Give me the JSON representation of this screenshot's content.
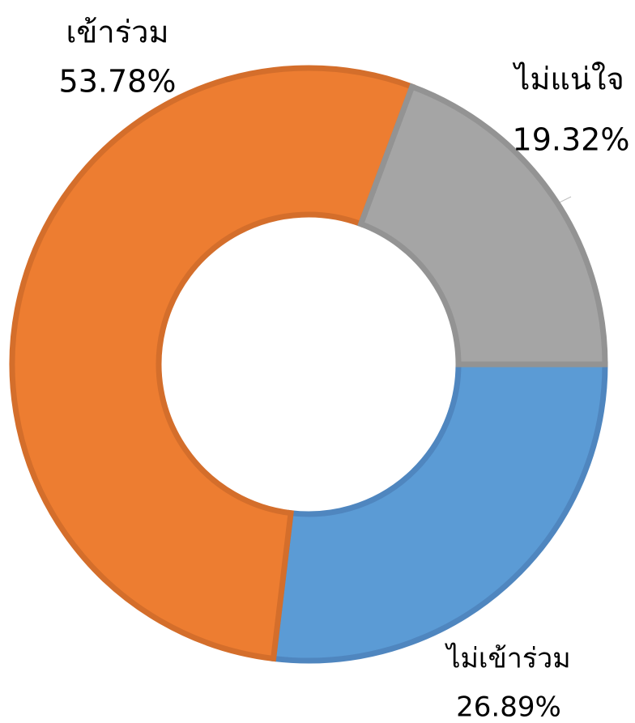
{
  "chart_data": {
    "type": "donut",
    "categories": [
      "ไม่เข้าร่วม",
      "เข้าร่วม",
      "ไม่แน่ใจ"
    ],
    "values": [
      26.89,
      53.78,
      19.32
    ],
    "value_labels": [
      "26.89%",
      "53.78%",
      "19.32%"
    ],
    "colors": [
      "#5b9bd5",
      "#ed7d31",
      "#a5a5a5"
    ]
  }
}
